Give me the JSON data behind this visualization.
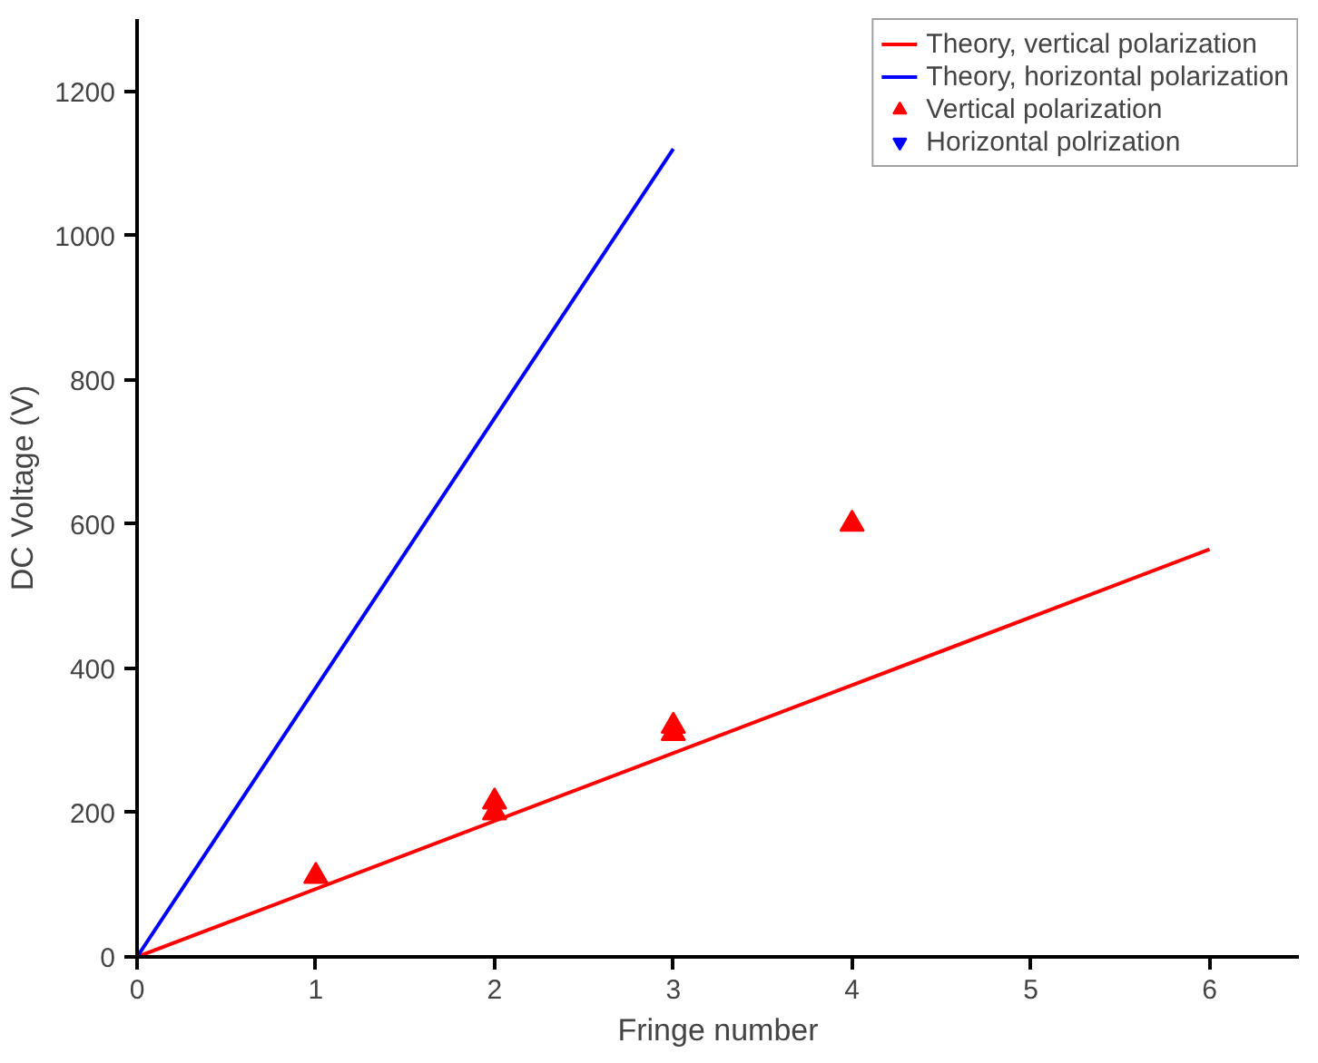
{
  "chart_data": {
    "type": "line",
    "xlabel": "Fringe number",
    "ylabel": "DC Voltage (V)",
    "xlim": [
      0,
      6.5
    ],
    "ylim": [
      0,
      1300
    ],
    "xticks": [
      0,
      1,
      2,
      3,
      4,
      5,
      6
    ],
    "yticks": [
      0,
      200,
      400,
      600,
      800,
      1000,
      1200
    ],
    "grid": false,
    "legend": "top right",
    "series": [
      {
        "name": "Theory, vertical polarization",
        "color": "#ff0000",
        "x": [
          0,
          6
        ],
        "values": [
          0,
          565
        ]
      },
      {
        "name": "Theory, horizontal polarization",
        "color": "#0000ff",
        "x": [
          0,
          3
        ],
        "values": [
          0,
          1120
        ]
      },
      {
        "name": "Vertical polarization",
        "type": "scatter",
        "color": "#ff0000",
        "x": [
          1,
          2,
          2,
          3,
          3,
          4
        ],
        "values": [
          112,
          215,
          200,
          320,
          310,
          600
        ],
        "marker": "triangle"
      },
      {
        "name": "Horizontal polrization",
        "type": "scatter",
        "color": "#0000ff",
        "marker": "inverted_triangle"
      }
    ]
  }
}
